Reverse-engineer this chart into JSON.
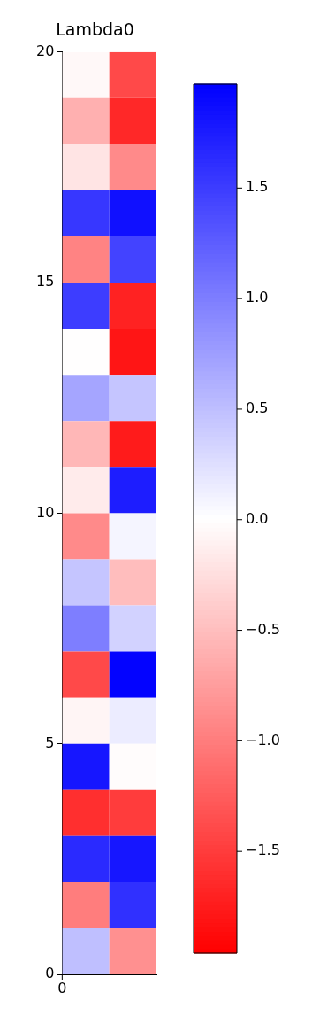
{
  "chart_data": {
    "type": "heatmap",
    "title": "Lambda0",
    "cells": [
      [
        -0.05,
        -1.4
      ],
      [
        -0.6,
        -1.65
      ],
      [
        -0.2,
        -0.9
      ],
      [
        1.55,
        1.85
      ],
      [
        -0.95,
        1.45
      ],
      [
        1.5,
        -1.7
      ],
      [
        0.0,
        -1.8
      ],
      [
        0.7,
        0.45
      ],
      [
        -0.55,
        -1.75
      ],
      [
        -0.15,
        1.75
      ],
      [
        -0.9,
        0.08
      ],
      [
        0.45,
        -0.5
      ],
      [
        1.0,
        0.35
      ],
      [
        -1.4,
        1.95
      ],
      [
        -0.07,
        0.15
      ],
      [
        1.8,
        -0.02
      ],
      [
        -1.6,
        -1.5
      ],
      [
        1.65,
        1.8
      ],
      [
        -1.0,
        1.6
      ],
      [
        0.5,
        -0.85
      ]
    ],
    "categories": [
      null,
      null
    ],
    "annotations": [
      "0"
    ],
    "ylim": [
      0,
      20
    ],
    "yticks": [
      0,
      5,
      10,
      15,
      20
    ],
    "clim": [
      -1.96,
      1.97
    ],
    "cticks": [
      {
        "value": -1.5,
        "label": "−1.5"
      },
      {
        "value": -1.0,
        "label": "−1.0"
      },
      {
        "value": -0.5,
        "label": "−0.5"
      },
      {
        "value": 0,
        "label": "0.0"
      },
      {
        "value": 0.5,
        "label": "0.5"
      },
      {
        "value": 1.0,
        "label": "1.0"
      },
      {
        "value": 1.5,
        "label": "1.5"
      }
    ]
  }
}
